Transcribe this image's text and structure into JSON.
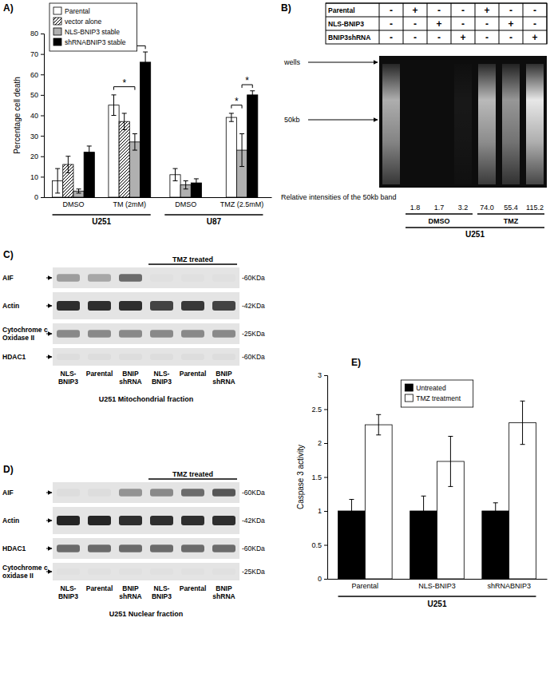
{
  "chart_data": [
    {
      "type": "bar",
      "title": "A)",
      "y_label": "Percentage cell death",
      "groups": [
        {
          "name": "U251",
          "categories": [
            "DMSO",
            "TM (2mM)"
          ]
        },
        {
          "name": "U87",
          "categories": [
            "DMSO",
            "TMZ (2.5mM)"
          ]
        }
      ],
      "series": [
        {
          "name": "Parental",
          "color": "#ffffff",
          "values": [
            8,
            45,
            11,
            39
          ],
          "errors": [
            6,
            5,
            3,
            2
          ]
        },
        {
          "name": "vector alone",
          "color": "#000000",
          "marker": "hatch",
          "values": [
            16,
            37,
            null,
            null
          ],
          "errors": [
            4,
            4,
            null,
            null
          ]
        },
        {
          "name": "NLS-BNIP3 stable",
          "color": "#b0b0b0",
          "values": [
            3,
            27,
            6,
            23
          ],
          "errors": [
            1,
            4,
            2,
            8
          ]
        },
        {
          "name": "shRNABNIP3 stable",
          "color": "#000000",
          "values": [
            22,
            66,
            7,
            50
          ],
          "errors": [
            3,
            5,
            2,
            2
          ]
        }
      ],
      "annotations": [
        {
          "text": "*",
          "category": 1,
          "from": 0,
          "to": 3,
          "y": 74
        },
        {
          "text": "*",
          "category": 1,
          "from": 0,
          "to": 2,
          "y": 54
        },
        {
          "text": "*",
          "category": 3,
          "from": 0,
          "to": 2,
          "y": 45
        },
        {
          "text": "*",
          "category": 3,
          "from": 2,
          "to": 3,
          "y": 55
        }
      ],
      "ylim": [
        0,
        80
      ],
      "yticks": [
        0,
        10,
        20,
        30,
        40,
        50,
        60,
        70,
        80
      ],
      "legend": "upper left"
    },
    {
      "type": "bar",
      "title": "E)",
      "y_label": "Caspase 3 activity",
      "x_label": "U251",
      "categories": [
        "Parental",
        "NLS-BNIP3",
        "shRNABNIP3"
      ],
      "series": [
        {
          "name": "Untreated",
          "color": "#000000",
          "values": [
            1,
            1,
            1
          ],
          "errors": [
            0.17,
            0.22,
            0.12
          ]
        },
        {
          "name": "TMZ treatment",
          "color": "#ffffff",
          "values": [
            2.27,
            1.73,
            2.3
          ],
          "errors": [
            0.15,
            0.37,
            0.32
          ]
        }
      ],
      "ylim": [
        0,
        3
      ],
      "yticks": [
        0,
        0.5,
        1,
        1.5,
        2,
        2.5,
        3
      ],
      "legend": "upper center"
    }
  ],
  "gel": {
    "title": "B)",
    "rows": [
      {
        "label": "Parental",
        "cells": [
          "-",
          "+",
          "-",
          "-",
          "+",
          "-",
          "-"
        ]
      },
      {
        "label": "NLS-BNIP3",
        "cells": [
          "-",
          "-",
          "+",
          "-",
          "-",
          "+",
          "-"
        ]
      },
      {
        "label": "BNIP3shRNA",
        "cells": [
          "-",
          "-",
          "-",
          "+",
          "-",
          "-",
          "+"
        ]
      }
    ],
    "wells_label": "wells",
    "size_label": "50kb",
    "lane_smear": [
      0.7,
      0.0,
      0.0,
      0.05,
      0.75,
      0.6,
      0.95
    ],
    "intensity_caption": "Relative intensities of the 50kb band",
    "intensities": [
      "1.8",
      "1.7",
      "3.2",
      "74.0",
      "55.4",
      "115.2"
    ],
    "treatments": [
      "DMSO",
      "TMZ"
    ],
    "cell_line": "U251"
  },
  "blots": [
    {
      "title": "C)",
      "treatment": "TMZ treated",
      "caption": "U251 Mitochondrial fraction",
      "lanes": [
        "NLS-BNIP3",
        "Parental",
        "BNIP shRNA",
        "NLS-BNIP3",
        "Parental",
        "BNIP shRNA"
      ],
      "rows": [
        {
          "label": "AIF",
          "mw": "-60KDa",
          "bands": [
            0.35,
            0.3,
            0.6,
            0.02,
            0.02,
            0.02
          ]
        },
        {
          "label": "Actin",
          "mw": "-42KDa",
          "bands": [
            0.9,
            0.9,
            0.9,
            0.8,
            0.85,
            0.8
          ]
        },
        {
          "label": "Cytochrome c Oxidase II",
          "mw": "-25KDa",
          "bands": [
            0.45,
            0.45,
            0.45,
            0.45,
            0.45,
            0.45
          ]
        },
        {
          "label": "HDAC1",
          "mw": "-60KDa",
          "bands": [
            0.03,
            0.03,
            0.03,
            0.03,
            0.03,
            0.03
          ]
        }
      ]
    },
    {
      "title": "D)",
      "treatment": "TMZ treated",
      "caption": "U251 Nuclear fraction",
      "lanes": [
        "NLS-BNIP3",
        "Parental",
        "BNIP shRNA",
        "NLS-BNIP3",
        "Parental",
        "BNIP shRNA"
      ],
      "rows": [
        {
          "label": "AIF",
          "mw": "-60KDa",
          "bands": [
            0.03,
            0.03,
            0.4,
            0.45,
            0.6,
            0.7
          ]
        },
        {
          "label": "Actin",
          "mw": "-42KDa",
          "bands": [
            0.95,
            0.95,
            0.9,
            0.9,
            0.9,
            0.9
          ]
        },
        {
          "label": "HDAC1",
          "mw": "-60KDa",
          "bands": [
            0.6,
            0.6,
            0.6,
            0.6,
            0.6,
            0.6
          ]
        },
        {
          "label": "Cytochrome c oxidase II",
          "mw": "-25KDa",
          "bands": [
            0.02,
            0.02,
            0.02,
            0.02,
            0.02,
            0.02
          ]
        }
      ]
    }
  ]
}
